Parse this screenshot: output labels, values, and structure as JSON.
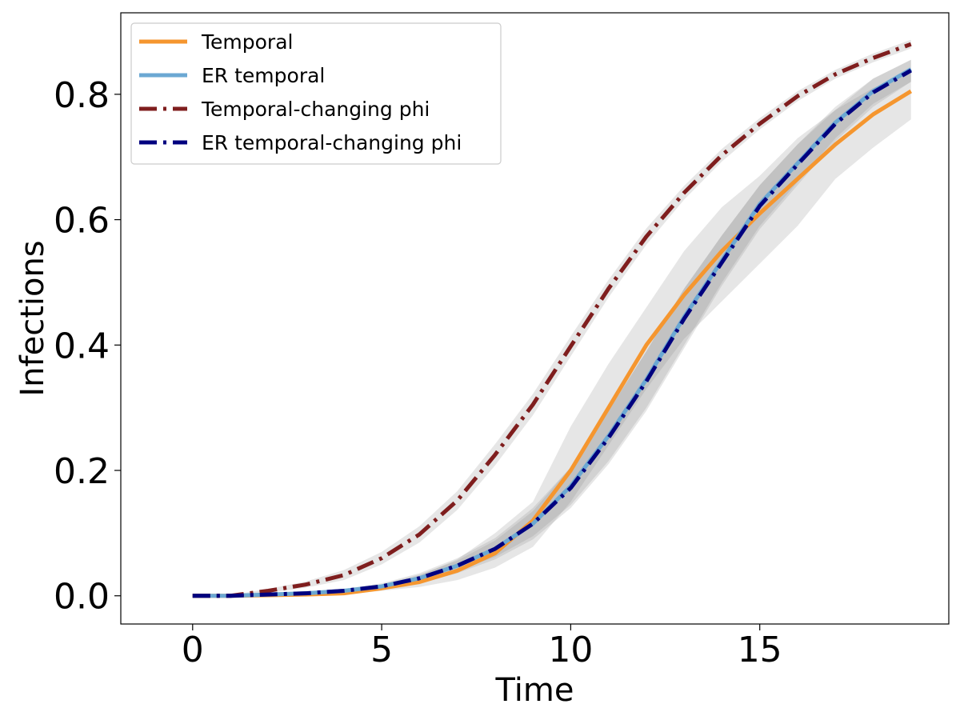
{
  "chart_data": {
    "type": "line",
    "title": "",
    "xlabel": "Time",
    "ylabel": "Infections",
    "xlim": [
      -1.9,
      20
    ],
    "ylim": [
      -0.045,
      0.93
    ],
    "xticks": [
      0,
      5,
      10,
      15
    ],
    "xtick_labels": [
      "0",
      "5",
      "10",
      "15"
    ],
    "yticks": [
      0.0,
      0.2,
      0.4,
      0.6,
      0.8
    ],
    "ytick_labels": [
      "0.0",
      "0.2",
      "0.4",
      "0.6",
      "0.8"
    ],
    "grid": false,
    "legend_position": "top-left",
    "x": [
      0,
      1,
      2,
      3,
      4,
      5,
      6,
      7,
      8,
      9,
      10,
      11,
      12,
      13,
      14,
      15,
      16,
      17,
      18,
      19
    ],
    "series": [
      {
        "name": "Temporal",
        "color": "#F5962F",
        "style": "solid",
        "values": [
          0.0,
          0.0,
          0.001,
          0.002,
          0.004,
          0.012,
          0.022,
          0.04,
          0.068,
          0.12,
          0.2,
          0.3,
          0.4,
          0.48,
          0.55,
          0.61,
          0.665,
          0.72,
          0.768,
          0.805
        ],
        "band_lower": [
          0.0,
          0.0,
          0.0,
          0.001,
          0.002,
          0.008,
          0.014,
          0.025,
          0.045,
          0.078,
          0.15,
          0.24,
          0.33,
          0.41,
          0.47,
          0.53,
          0.59,
          0.665,
          0.715,
          0.76
        ],
        "band_upper": [
          0.0,
          0.001,
          0.002,
          0.004,
          0.007,
          0.016,
          0.032,
          0.058,
          0.1,
          0.15,
          0.27,
          0.37,
          0.46,
          0.55,
          0.62,
          0.67,
          0.73,
          0.775,
          0.81,
          0.835
        ]
      },
      {
        "name": "ER temporal",
        "color": "#6BA8D3",
        "style": "solid",
        "values": [
          0.0,
          0.0,
          0.002,
          0.004,
          0.008,
          0.015,
          0.028,
          0.048,
          0.075,
          0.115,
          0.175,
          0.255,
          0.345,
          0.445,
          0.535,
          0.625,
          0.69,
          0.755,
          0.805,
          0.84
        ],
        "band_lower": [
          0.0,
          0.0,
          0.001,
          0.003,
          0.006,
          0.012,
          0.022,
          0.04,
          0.062,
          0.095,
          0.145,
          0.215,
          0.3,
          0.4,
          0.5,
          0.59,
          0.66,
          0.73,
          0.785,
          0.82
        ],
        "band_upper": [
          0.0,
          0.001,
          0.003,
          0.005,
          0.01,
          0.018,
          0.034,
          0.056,
          0.088,
          0.135,
          0.205,
          0.295,
          0.39,
          0.49,
          0.575,
          0.655,
          0.72,
          0.775,
          0.825,
          0.855
        ]
      },
      {
        "name": "Temporal-changing phi",
        "color": "#7F1E1E",
        "style": "dashdot",
        "values": [
          0.0,
          0.0,
          0.008,
          0.018,
          0.033,
          0.06,
          0.098,
          0.152,
          0.225,
          0.305,
          0.398,
          0.49,
          0.573,
          0.643,
          0.703,
          0.753,
          0.797,
          0.832,
          0.858,
          0.88
        ],
        "band_lower": [
          0.0,
          0.0,
          0.005,
          0.013,
          0.025,
          0.05,
          0.085,
          0.137,
          0.208,
          0.288,
          0.382,
          0.476,
          0.56,
          0.632,
          0.693,
          0.744,
          0.789,
          0.825,
          0.851,
          0.873
        ],
        "band_upper": [
          0.0,
          0.001,
          0.011,
          0.023,
          0.041,
          0.07,
          0.111,
          0.167,
          0.242,
          0.322,
          0.414,
          0.504,
          0.586,
          0.654,
          0.713,
          0.762,
          0.805,
          0.839,
          0.865,
          0.887
        ]
      },
      {
        "name": "ER temporal-changing phi",
        "color": "#00007F",
        "style": "dashdot",
        "values": [
          0.0,
          0.0,
          0.002,
          0.004,
          0.008,
          0.015,
          0.028,
          0.048,
          0.075,
          0.115,
          0.172,
          0.252,
          0.342,
          0.442,
          0.532,
          0.622,
          0.688,
          0.753,
          0.803,
          0.838
        ],
        "band_lower": [
          0.0,
          0.0,
          0.001,
          0.002,
          0.005,
          0.011,
          0.02,
          0.036,
          0.058,
          0.09,
          0.14,
          0.21,
          0.295,
          0.395,
          0.495,
          0.585,
          0.655,
          0.725,
          0.78,
          0.82
        ],
        "band_upper": [
          0.0,
          0.001,
          0.003,
          0.006,
          0.011,
          0.02,
          0.036,
          0.06,
          0.092,
          0.14,
          0.205,
          0.295,
          0.39,
          0.49,
          0.575,
          0.655,
          0.72,
          0.78,
          0.825,
          0.855
        ]
      }
    ]
  }
}
